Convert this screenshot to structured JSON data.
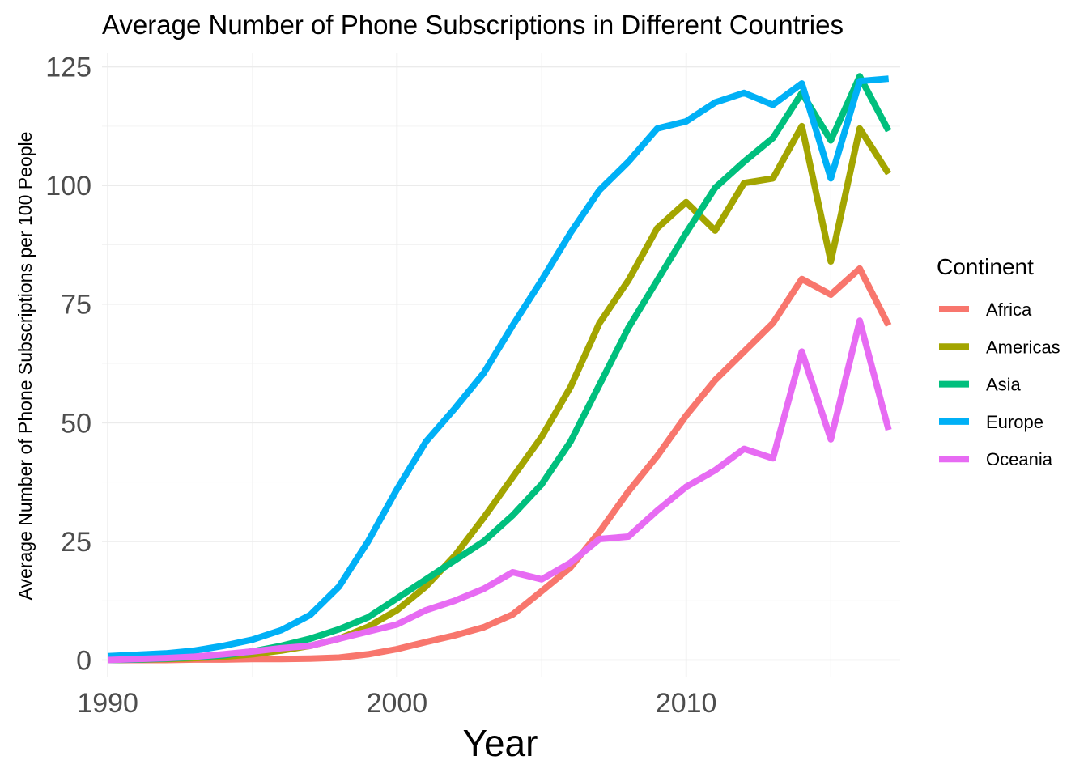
{
  "chart_data": {
    "type": "line",
    "title": "Average Number of Phone Subscriptions in Different Countries",
    "xlabel": "Year",
    "ylabel": "Average Number of Phone Subscriptions per 100 People",
    "xlim": [
      1989.8,
      2017.4
    ],
    "ylim": [
      -3.5,
      128
    ],
    "xticks": [
      1990,
      2000,
      2010
    ],
    "yticks": [
      0,
      25,
      50,
      75,
      100,
      125
    ],
    "grid": true,
    "legend": {
      "title": "Continent",
      "position": "right"
    },
    "x": [
      1990,
      1991,
      1992,
      1993,
      1994,
      1995,
      1996,
      1997,
      1998,
      1999,
      2000,
      2001,
      2002,
      2003,
      2004,
      2005,
      2006,
      2007,
      2008,
      2009,
      2010,
      2011,
      2012,
      2013,
      2014,
      2015,
      2016,
      2017
    ],
    "series": [
      {
        "name": "Africa",
        "color": "#F8766D",
        "values": [
          0.0,
          0.0,
          0.0,
          0.1,
          0.1,
          0.2,
          0.2,
          0.3,
          0.5,
          1.2,
          2.3,
          3.8,
          5.2,
          6.9,
          9.6,
          14.5,
          19.5,
          27.0,
          35.5,
          43.0,
          51.5,
          59.0,
          65.0,
          71.0,
          80.3,
          77.0,
          82.5,
          70.5
        ]
      },
      {
        "name": "Americas",
        "color": "#A3A500",
        "values": [
          0.0,
          0.1,
          0.2,
          0.4,
          0.7,
          1.2,
          2.0,
          3.0,
          4.5,
          7.0,
          10.5,
          15.5,
          22.0,
          30.0,
          38.5,
          47.0,
          57.5,
          71.0,
          80.0,
          91.0,
          96.5,
          90.5,
          100.5,
          101.5,
          112.5,
          84.0,
          112.0,
          102.5
        ]
      },
      {
        "name": "Asia",
        "color": "#00BF7D",
        "values": [
          0.0,
          0.1,
          0.3,
          0.6,
          1.0,
          1.8,
          3.0,
          4.5,
          6.5,
          9.0,
          13.0,
          17.0,
          21.0,
          25.0,
          30.5,
          37.0,
          46.0,
          58.0,
          70.0,
          80.0,
          90.0,
          99.5,
          105.0,
          110.0,
          119.5,
          109.5,
          123.0,
          111.5
        ]
      },
      {
        "name": "Europe",
        "color": "#00B0F6",
        "values": [
          0.8,
          1.1,
          1.4,
          2.0,
          3.0,
          4.3,
          6.3,
          9.5,
          15.5,
          25.0,
          36.0,
          46.0,
          53.0,
          60.5,
          70.5,
          80.0,
          90.0,
          99.0,
          105.0,
          112.0,
          113.5,
          117.5,
          119.5,
          117.0,
          121.5,
          101.5,
          122.0,
          122.5
        ]
      },
      {
        "name": "Oceania",
        "color": "#E76BF3",
        "values": [
          0.0,
          0.2,
          0.4,
          0.7,
          1.2,
          1.8,
          2.5,
          3.0,
          4.5,
          6.0,
          7.5,
          10.5,
          12.5,
          15.0,
          18.5,
          17.0,
          20.5,
          25.5,
          26.0,
          31.5,
          36.5,
          40.0,
          44.5,
          42.5,
          65.0,
          46.5,
          71.5,
          48.5
        ]
      }
    ]
  }
}
